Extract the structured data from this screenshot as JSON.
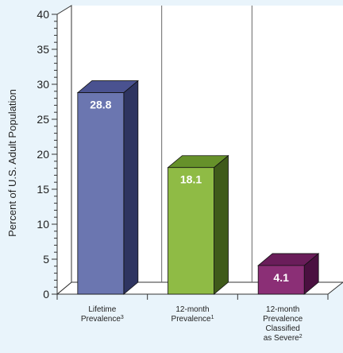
{
  "chart_data": {
    "type": "bar",
    "title": "",
    "ylabel": "Percent of U.S. Adult Population",
    "xlabel": "",
    "ylim": [
      0,
      40
    ],
    "yticks": [
      0,
      5,
      10,
      15,
      20,
      25,
      30,
      35,
      40
    ],
    "categories": [
      {
        "lines": [
          "Lifetime",
          "Prevalence"
        ],
        "sup": "3"
      },
      {
        "lines": [
          "12-month",
          "Prevalence"
        ],
        "sup": "1"
      },
      {
        "lines": [
          "12-month",
          "Prevalence",
          "Classified",
          "as Severe"
        ],
        "sup": "2"
      }
    ],
    "values": [
      28.8,
      18.1,
      4.1
    ],
    "value_labels": [
      "28.8",
      "18.1",
      "4.1"
    ],
    "grid": "vertical-only",
    "colors": {
      "background": "#e9f4fb",
      "plot_back": "#ffffff",
      "bars": [
        {
          "front": "#6b76b0",
          "side": "#2e3460",
          "top": "#4a5290"
        },
        {
          "front": "#8fbb45",
          "side": "#3f5a1a",
          "top": "#66912a"
        },
        {
          "front": "#8b2f76",
          "side": "#4a1040",
          "top": "#6a1d5a"
        }
      ]
    }
  }
}
